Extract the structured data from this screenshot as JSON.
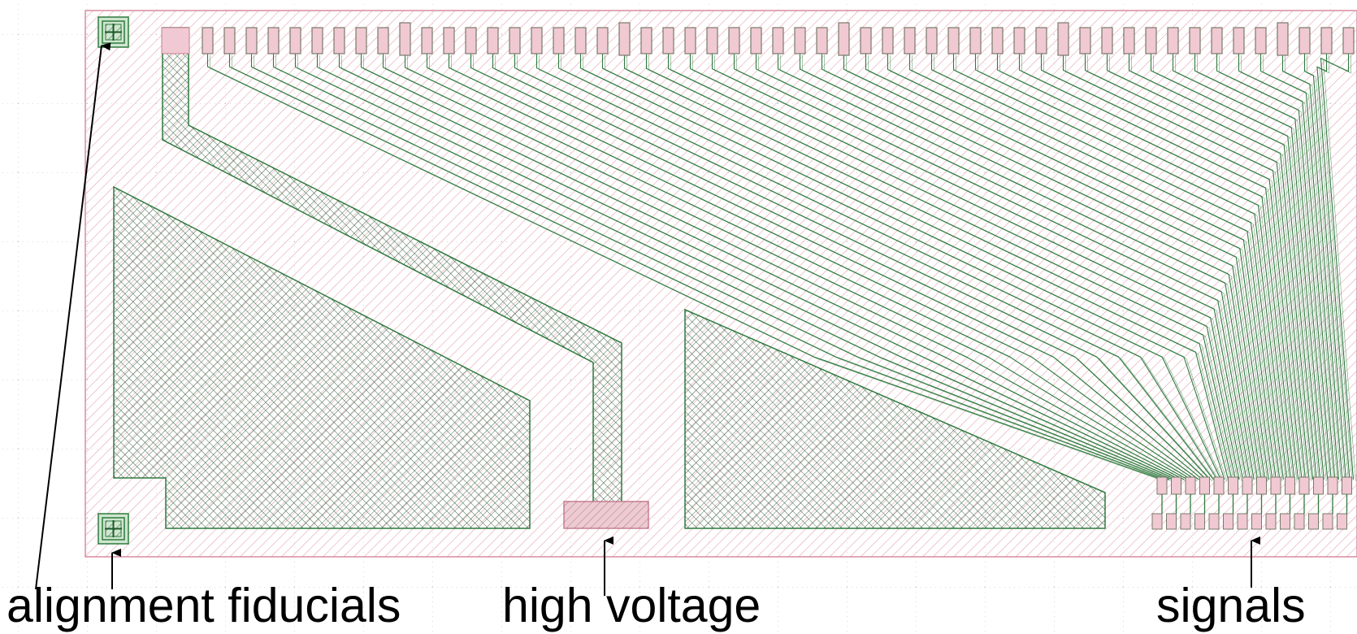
{
  "labels": {
    "alignment": "alignment fiducials",
    "high_voltage": "high voltage",
    "signals": "signals"
  },
  "colors": {
    "substrate_hatch": "#e6a3b3",
    "substrate_border": "#d98ca0",
    "metal_stroke": "#2f7a3e",
    "metal_hatch": "#2b5f34",
    "grid_dot": "#b0b0b0",
    "text": "#000000"
  },
  "pads": {
    "top_row_count": 54,
    "bottom_row_count": 14
  }
}
